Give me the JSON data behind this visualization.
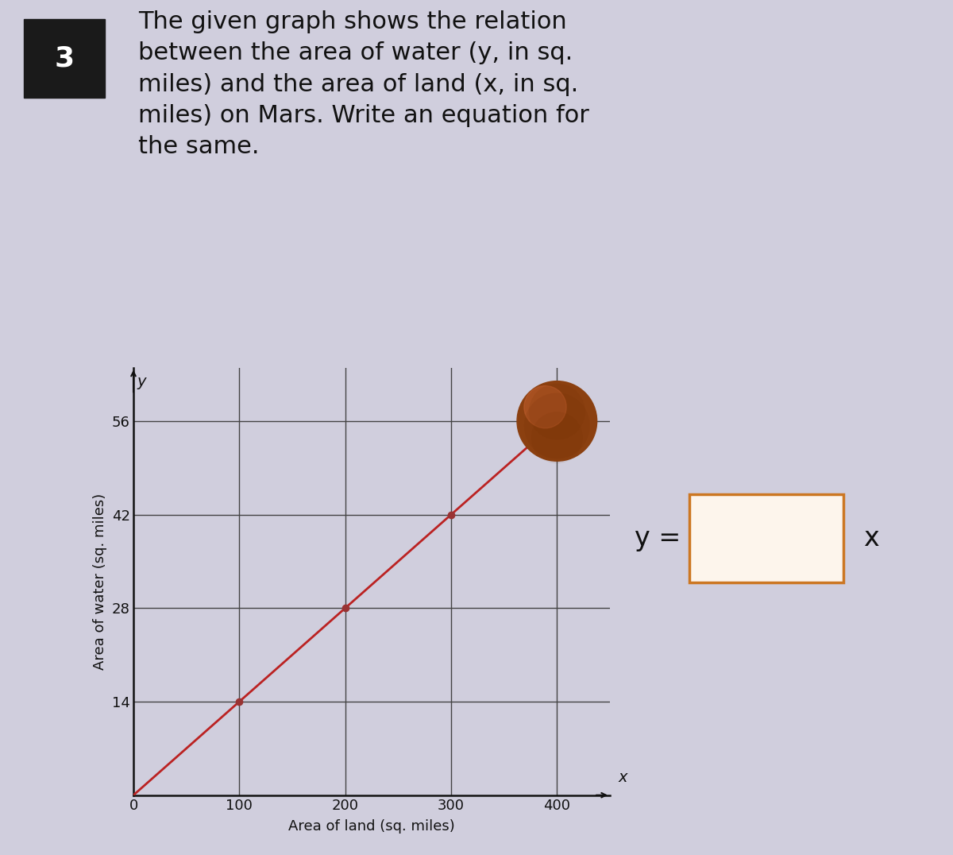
{
  "problem_number": "3",
  "problem_text_lines": [
    "The given graph shows the relation",
    "between the area of water (y, in sq.",
    "miles) and the area of land (x, in sq.",
    "miles) on Mars. Write an equation for",
    "the same."
  ],
  "header_bg_color": "#c8c5d5",
  "header_text_color": "#111111",
  "num_box_color": "#1a1a1a",
  "num_text_color": "#ffffff",
  "graph_points_x": [
    100,
    200,
    300,
    400
  ],
  "graph_points_y": [
    14,
    28,
    42,
    56
  ],
  "line_color": "#bb2222",
  "line_width": 2.0,
  "point_marker_color": "#993333",
  "point_marker_size": 6,
  "x_ticks": [
    0,
    100,
    200,
    300,
    400
  ],
  "y_ticks": [
    14,
    28,
    42,
    56
  ],
  "xlim": [
    0,
    450
  ],
  "ylim": [
    0,
    64
  ],
  "xlabel": "Area of land (sq. miles)",
  "ylabel": "Area of water (sq. miles)",
  "grid_color": "#444444",
  "grid_linewidth": 1.0,
  "mars_color": "#8B4010",
  "mars_highlight_color": "#c46030",
  "answer_box_edge_color": "#cc7722",
  "answer_box_face_color": "#fdf5ec",
  "bg_color": "#d0cedd",
  "spine_color": "#111111",
  "tick_label_fontsize": 13,
  "axis_label_fontsize": 13,
  "header_fontsize": 22,
  "eq_fontsize": 24
}
